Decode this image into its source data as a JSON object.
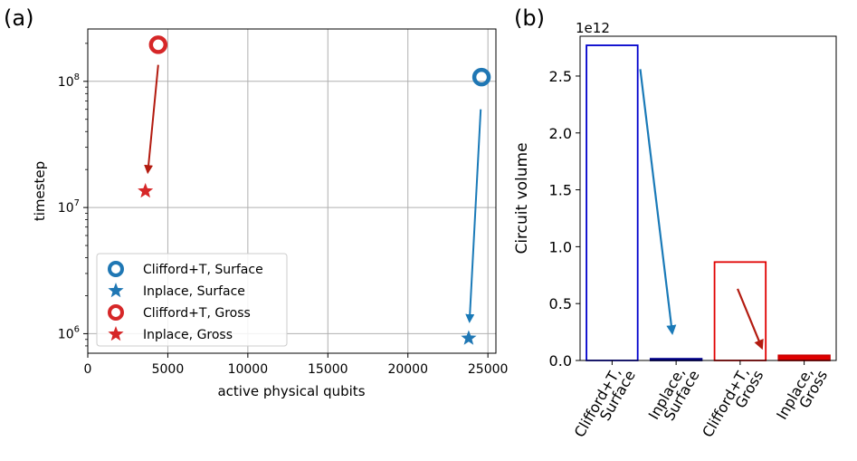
{
  "chart_data": [
    {
      "panel_label": "(a)",
      "type": "scatter",
      "xlabel": "active physical qubits",
      "ylabel": "timestep",
      "xlim": [
        0,
        25500
      ],
      "yscale": "log",
      "ylim": [
        700000,
        260000000
      ],
      "x_ticks": [
        0,
        5000,
        10000,
        15000,
        20000,
        25000
      ],
      "x_tick_labels": [
        "0",
        "5000",
        "10000",
        "15000",
        "20000",
        "25000"
      ],
      "y_ticks": [
        1000000,
        10000000,
        100000000
      ],
      "y_tick_bases": [
        "10",
        "10",
        "10"
      ],
      "y_tick_exponents": [
        "6",
        "7",
        "8"
      ],
      "grid": true,
      "legend_position": "lower-left",
      "series": [
        {
          "name": "Clifford+T, Surface",
          "marker": "ring",
          "color": "#1f77b4",
          "x": 24600,
          "y": 108000000
        },
        {
          "name": "Inplace, Surface",
          "marker": "star",
          "color": "#1f77b4",
          "x": 23800,
          "y": 920000
        },
        {
          "name": "Clifford+T, Gross",
          "marker": "ring",
          "color": "#d62728",
          "x": 4400,
          "y": 195000000
        },
        {
          "name": "Inplace, Gross",
          "marker": "star",
          "color": "#d62728",
          "x": 3600,
          "y": 13500000
        }
      ],
      "arrows": [
        {
          "color": "#1a7ab8",
          "from": [
            24550,
            60000000
          ],
          "to": [
            23850,
            1250000
          ]
        },
        {
          "color": "#b31b10",
          "from": [
            4400,
            135000000
          ],
          "to": [
            3750,
            19000000
          ]
        }
      ]
    },
    {
      "panel_label": "(b)",
      "type": "bar",
      "ylabel": "Circuit volume",
      "y_offset_label": "1e12",
      "ylim": [
        0,
        2.85
      ],
      "y_ticks": [
        0.0,
        0.5,
        1.0,
        1.5,
        2.0,
        2.5
      ],
      "y_tick_labels": [
        "0.0",
        "0.5",
        "1.0",
        "1.5",
        "2.0",
        "2.5"
      ],
      "categories": [
        {
          "line1": "Clifford+T,",
          "line2": "Surface"
        },
        {
          "line1": "Inplace,",
          "line2": "Surface"
        },
        {
          "line1": "Clifford+T,",
          "line2": "Gross"
        },
        {
          "line1": "Inplace,",
          "line2": "Gross"
        }
      ],
      "values": [
        2.77,
        0.015,
        0.865,
        0.045
      ],
      "edge_colors": [
        "#0000cc",
        "#00008b",
        "#e00000",
        "#cc0000"
      ],
      "fills": [
        "none",
        "#00008b",
        "none",
        "#e00000"
      ],
      "arrows": [
        {
          "color": "#1a7ab8",
          "from": [
            0.44,
            2.56
          ],
          "to": [
            0.94,
            0.24
          ]
        },
        {
          "color": "#b31b10",
          "from": [
            1.96,
            0.63
          ],
          "to": [
            2.34,
            0.11
          ]
        }
      ]
    }
  ]
}
